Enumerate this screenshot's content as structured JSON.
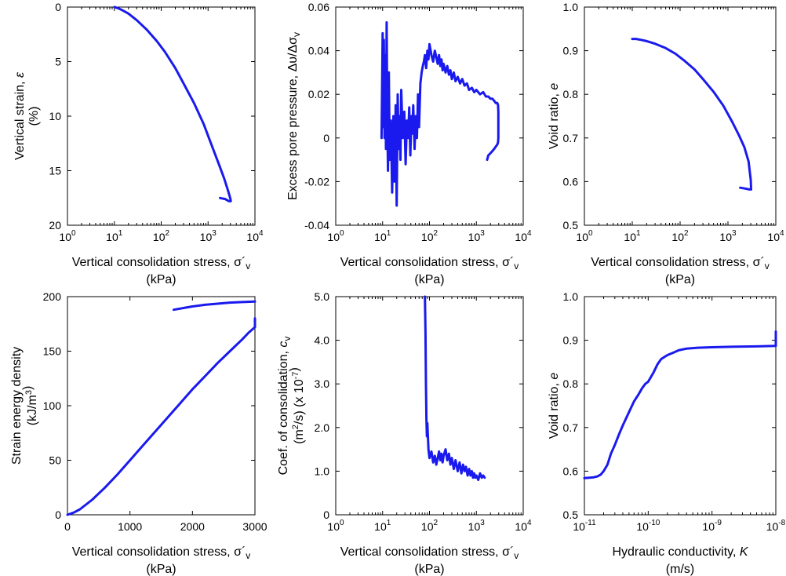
{
  "figure": {
    "series_color": "#1a1aee"
  },
  "chart_data": [
    {
      "id": "strain",
      "type": "line",
      "xscale": "log",
      "xlim": [
        1,
        10000
      ],
      "yscale": "linear",
      "ylim": [
        0,
        20
      ],
      "y_inverted": true,
      "ylabel_lines": [
        "Vertical strain, ε",
        "(%)"
      ],
      "xlabel_lines": [
        "Vertical consolidation stress, σ´v",
        "(kPa)"
      ],
      "yticks": [
        0,
        5,
        10,
        15,
        20
      ],
      "ytick_labels": [
        "0",
        "5",
        "10",
        "15",
        "20"
      ],
      "xticks": [
        1,
        10,
        100,
        1000,
        10000
      ],
      "xtick_labels": [
        [
          "10",
          "0"
        ],
        [
          "10",
          "1"
        ],
        [
          "10",
          "2"
        ],
        [
          "10",
          "3"
        ],
        [
          "10",
          "4"
        ]
      ],
      "series": [
        {
          "x": [
            10,
            12,
            15,
            20,
            30,
            50,
            80,
            120,
            200,
            300,
            500,
            800,
            1200,
            1700,
            2200,
            2700,
            3000,
            3050,
            2800,
            2300,
            1800
          ],
          "y": [
            0.0,
            0.1,
            0.3,
            0.6,
            1.2,
            2.1,
            3.1,
            4.1,
            5.6,
            7.0,
            8.8,
            10.7,
            12.7,
            14.4,
            15.7,
            16.9,
            17.6,
            17.8,
            17.8,
            17.6,
            17.5
          ]
        }
      ]
    },
    {
      "id": "pore",
      "type": "line",
      "xscale": "log",
      "xlim": [
        1,
        10000
      ],
      "yscale": "linear",
      "ylim": [
        -0.04,
        0.06
      ],
      "y_inverted": false,
      "ylabel_lines": [
        "Excess pore pressure, Δυ/Δσv"
      ],
      "xlabel_lines": [
        "Vertical consolidation stress, σ´v",
        "(kPa)"
      ],
      "yticks": [
        -0.04,
        -0.02,
        0,
        0.02,
        0.04,
        0.06
      ],
      "ytick_labels": [
        "-0.04",
        "-0.02",
        "0",
        "0.02",
        "0.04",
        "0.06"
      ],
      "xticks": [
        1,
        10,
        100,
        1000,
        10000
      ],
      "xtick_labels": [
        [
          "10",
          "0"
        ],
        [
          "10",
          "1"
        ],
        [
          "10",
          "2"
        ],
        [
          "10",
          "3"
        ],
        [
          "10",
          "4"
        ]
      ],
      "series": [
        {
          "x": [
            9.5,
            10,
            10.3,
            10.6,
            11,
            11.4,
            11.8,
            12.2,
            12.6,
            13,
            13.6,
            14.2,
            15,
            16,
            17,
            18,
            19,
            20,
            21,
            22,
            23,
            24,
            25,
            27,
            29,
            31,
            33,
            35,
            37,
            39,
            41,
            43,
            45,
            48,
            51,
            54,
            57,
            60,
            64,
            68,
            72,
            76,
            80,
            85,
            90,
            95,
            100,
            110,
            120,
            130,
            140,
            150,
            160,
            170,
            180,
            190,
            200,
            220,
            240,
            260,
            280,
            300,
            330,
            360,
            400,
            450,
            500,
            560,
            630,
            700,
            800,
            900,
            1000,
            1200,
            1400,
            1600,
            1800,
            2000,
            2200,
            2400,
            2600,
            2800,
            2900,
            2950,
            2950,
            2900,
            2800,
            2600,
            2400,
            2200,
            2000,
            1800,
            1700
          ],
          "y": [
            0.0,
            0.048,
            0.005,
            0.045,
            0.0,
            0.038,
            -0.005,
            0.053,
            0.01,
            -0.015,
            0.03,
            -0.01,
            0.008,
            -0.025,
            0.01,
            -0.02,
            0.015,
            -0.031,
            0.02,
            -0.005,
            0.01,
            -0.01,
            0.022,
            0.0,
            0.012,
            -0.012,
            0.008,
            0.0,
            0.014,
            -0.008,
            0.01,
            0.002,
            0.015,
            -0.005,
            0.01,
            0.0,
            0.02,
            0.005,
            0.025,
            0.03,
            0.033,
            0.035,
            0.038,
            0.032,
            0.04,
            0.036,
            0.043,
            0.038,
            0.035,
            0.04,
            0.037,
            0.034,
            0.038,
            0.033,
            0.036,
            0.031,
            0.034,
            0.03,
            0.033,
            0.029,
            0.031,
            0.027,
            0.03,
            0.026,
            0.028,
            0.025,
            0.027,
            0.024,
            0.025,
            0.022,
            0.023,
            0.021,
            0.022,
            0.02,
            0.021,
            0.019,
            0.019,
            0.018,
            0.018,
            0.017,
            0.016,
            0.016,
            0.015,
            0.012,
            0.0,
            -0.002,
            -0.003,
            -0.004,
            -0.005,
            -0.006,
            -0.007,
            -0.008,
            -0.01
          ]
        }
      ]
    },
    {
      "id": "void",
      "type": "line",
      "xscale": "log",
      "xlim": [
        1,
        10000
      ],
      "yscale": "linear",
      "ylim": [
        0.5,
        1.0
      ],
      "y_inverted": false,
      "ylabel_lines": [
        "Void ratio, e"
      ],
      "xlabel_lines": [
        "Vertical consolidation stress, σ´v",
        "(kPa)"
      ],
      "yticks": [
        0.5,
        0.6,
        0.7,
        0.8,
        0.9,
        1.0
      ],
      "ytick_labels": [
        "0.5",
        "0.6",
        "0.7",
        "0.8",
        "0.9",
        "1.0"
      ],
      "xticks": [
        1,
        10,
        100,
        1000,
        10000
      ],
      "xtick_labels": [
        [
          "10",
          "0"
        ],
        [
          "10",
          "1"
        ],
        [
          "10",
          "2"
        ],
        [
          "10",
          "3"
        ],
        [
          "10",
          "4"
        ]
      ],
      "series": [
        {
          "x": [
            10,
            12,
            15,
            20,
            30,
            50,
            80,
            120,
            200,
            300,
            500,
            800,
            1200,
            1700,
            2200,
            2700,
            3000,
            3050,
            2800,
            2300,
            1800
          ],
          "y": [
            0.927,
            0.927,
            0.925,
            0.922,
            0.916,
            0.906,
            0.893,
            0.878,
            0.857,
            0.835,
            0.806,
            0.774,
            0.739,
            0.706,
            0.679,
            0.646,
            0.603,
            0.582,
            0.582,
            0.584,
            0.586
          ]
        }
      ]
    },
    {
      "id": "energy",
      "type": "line",
      "xscale": "linear",
      "xlim": [
        0,
        3000
      ],
      "yscale": "linear",
      "ylim": [
        0,
        200
      ],
      "y_inverted": false,
      "ylabel_lines": [
        "Strain energy density",
        "(kJ/m3)"
      ],
      "xlabel_lines": [
        "Vertical consolidation stress, σ´v",
        "(kPa)"
      ],
      "yticks": [
        0,
        50,
        100,
        150,
        200
      ],
      "ytick_labels": [
        "0",
        "50",
        "100",
        "150",
        "200"
      ],
      "xticks": [
        0,
        1000,
        2000,
        3000
      ],
      "xtick_labels": [
        "0",
        "1000",
        "2000",
        "3000"
      ],
      "series": [
        {
          "x": [
            0,
            100,
            200,
            400,
            600,
            800,
            1000,
            1200,
            1400,
            1600,
            1800,
            2000,
            2200,
            2400,
            2600,
            2800,
            2900,
            3000,
            3000
          ],
          "y": [
            0,
            2,
            5,
            14,
            25,
            37,
            50,
            63,
            76,
            89,
            102,
            115,
            127,
            139,
            150,
            161,
            167,
            172,
            180
          ]
        },
        {
          "x": [
            1700,
            1800,
            1900,
            2000,
            2200,
            2400,
            2600,
            2800,
            3000
          ],
          "y": [
            188,
            189,
            190,
            191,
            192.5,
            193.5,
            194.5,
            195,
            195.5
          ]
        }
      ]
    },
    {
      "id": "cv",
      "type": "line",
      "xscale": "log",
      "xlim": [
        1,
        10000
      ],
      "yscale": "linear",
      "ylim": [
        0,
        5
      ],
      "y_inverted": false,
      "ylabel_lines": [
        "Coef. of consolidation, cv",
        "(m2/s) (x 10-7)"
      ],
      "xlabel_lines": [
        "Vertical consolidation stress, σ´v",
        "(kPa)"
      ],
      "yticks": [
        0,
        1,
        2,
        3,
        4,
        5
      ],
      "ytick_labels": [
        "0",
        "1.0",
        "2.0",
        "3.0",
        "4.0",
        "5.0"
      ],
      "xticks": [
        1,
        10,
        100,
        1000,
        10000
      ],
      "xtick_labels": [
        [
          "10",
          "0"
        ],
        [
          "10",
          "1"
        ],
        [
          "10",
          "2"
        ],
        [
          "10",
          "3"
        ],
        [
          "10",
          "4"
        ]
      ],
      "series": [
        {
          "x": [
            80,
            82,
            84,
            86,
            88,
            90,
            95,
            100,
            110,
            120,
            130,
            140,
            150,
            160,
            170,
            180,
            190,
            200,
            220,
            240,
            260,
            280,
            300,
            330,
            360,
            400,
            440,
            480,
            520,
            560,
            600,
            650,
            700,
            750,
            800,
            850,
            900,
            950,
            1000,
            1100,
            1200,
            1300,
            1400,
            1500
          ],
          "y": [
            5.0,
            4.2,
            3.0,
            2.2,
            1.8,
            2.1,
            1.5,
            1.3,
            1.45,
            1.2,
            1.35,
            1.15,
            1.3,
            1.45,
            1.25,
            1.4,
            1.2,
            1.35,
            1.5,
            1.25,
            1.4,
            1.15,
            1.3,
            1.05,
            1.25,
            1.0,
            1.2,
            0.95,
            1.15,
            1.0,
            1.1,
            0.9,
            1.05,
            0.9,
            1.0,
            0.85,
            0.95,
            0.85,
            0.9,
            0.8,
            0.95,
            0.85,
            0.9,
            0.85
          ]
        }
      ]
    },
    {
      "id": "perm",
      "type": "line",
      "xscale": "log",
      "xlim": [
        1e-11,
        1e-08
      ],
      "yscale": "linear",
      "ylim": [
        0.5,
        1.0
      ],
      "y_inverted": false,
      "ylabel_lines": [
        "Void ratio, e"
      ],
      "xlabel_lines": [
        "Hydraulic conductivity, K",
        "(m/s)"
      ],
      "yticks": [
        0.5,
        0.6,
        0.7,
        0.8,
        0.9,
        1.0
      ],
      "ytick_labels": [
        "0.5",
        "0.6",
        "0.7",
        "0.8",
        "0.9",
        "1.0"
      ],
      "xticks": [
        1e-11,
        1e-10,
        1e-09,
        1e-08
      ],
      "xtick_labels": [
        [
          "10",
          "-11"
        ],
        [
          "10",
          "-10"
        ],
        [
          "10",
          "-9"
        ],
        [
          "10",
          "-8"
        ]
      ],
      "series": [
        {
          "x": [
            1e-11,
            1.2e-11,
            1.4e-11,
            1.6e-11,
            1.8e-11,
            2e-11,
            2.3e-11,
            2.6e-11,
            3e-11,
            3.5e-11,
            4e-11,
            5e-11,
            6e-11,
            7e-11,
            8e-11,
            9e-11,
            1e-10,
            1.2e-10,
            1.4e-10,
            1.6e-10,
            2e-10,
            2.5e-10,
            3e-10,
            4e-10,
            6e-10,
            1e-09,
            2e-09,
            5e-09,
            1e-08,
            1e-08
          ],
          "y": [
            0.584,
            0.585,
            0.586,
            0.588,
            0.592,
            0.6,
            0.615,
            0.64,
            0.66,
            0.685,
            0.705,
            0.735,
            0.76,
            0.775,
            0.79,
            0.8,
            0.805,
            0.825,
            0.845,
            0.857,
            0.866,
            0.872,
            0.877,
            0.881,
            0.883,
            0.884,
            0.885,
            0.886,
            0.887,
            0.92
          ]
        }
      ]
    }
  ]
}
